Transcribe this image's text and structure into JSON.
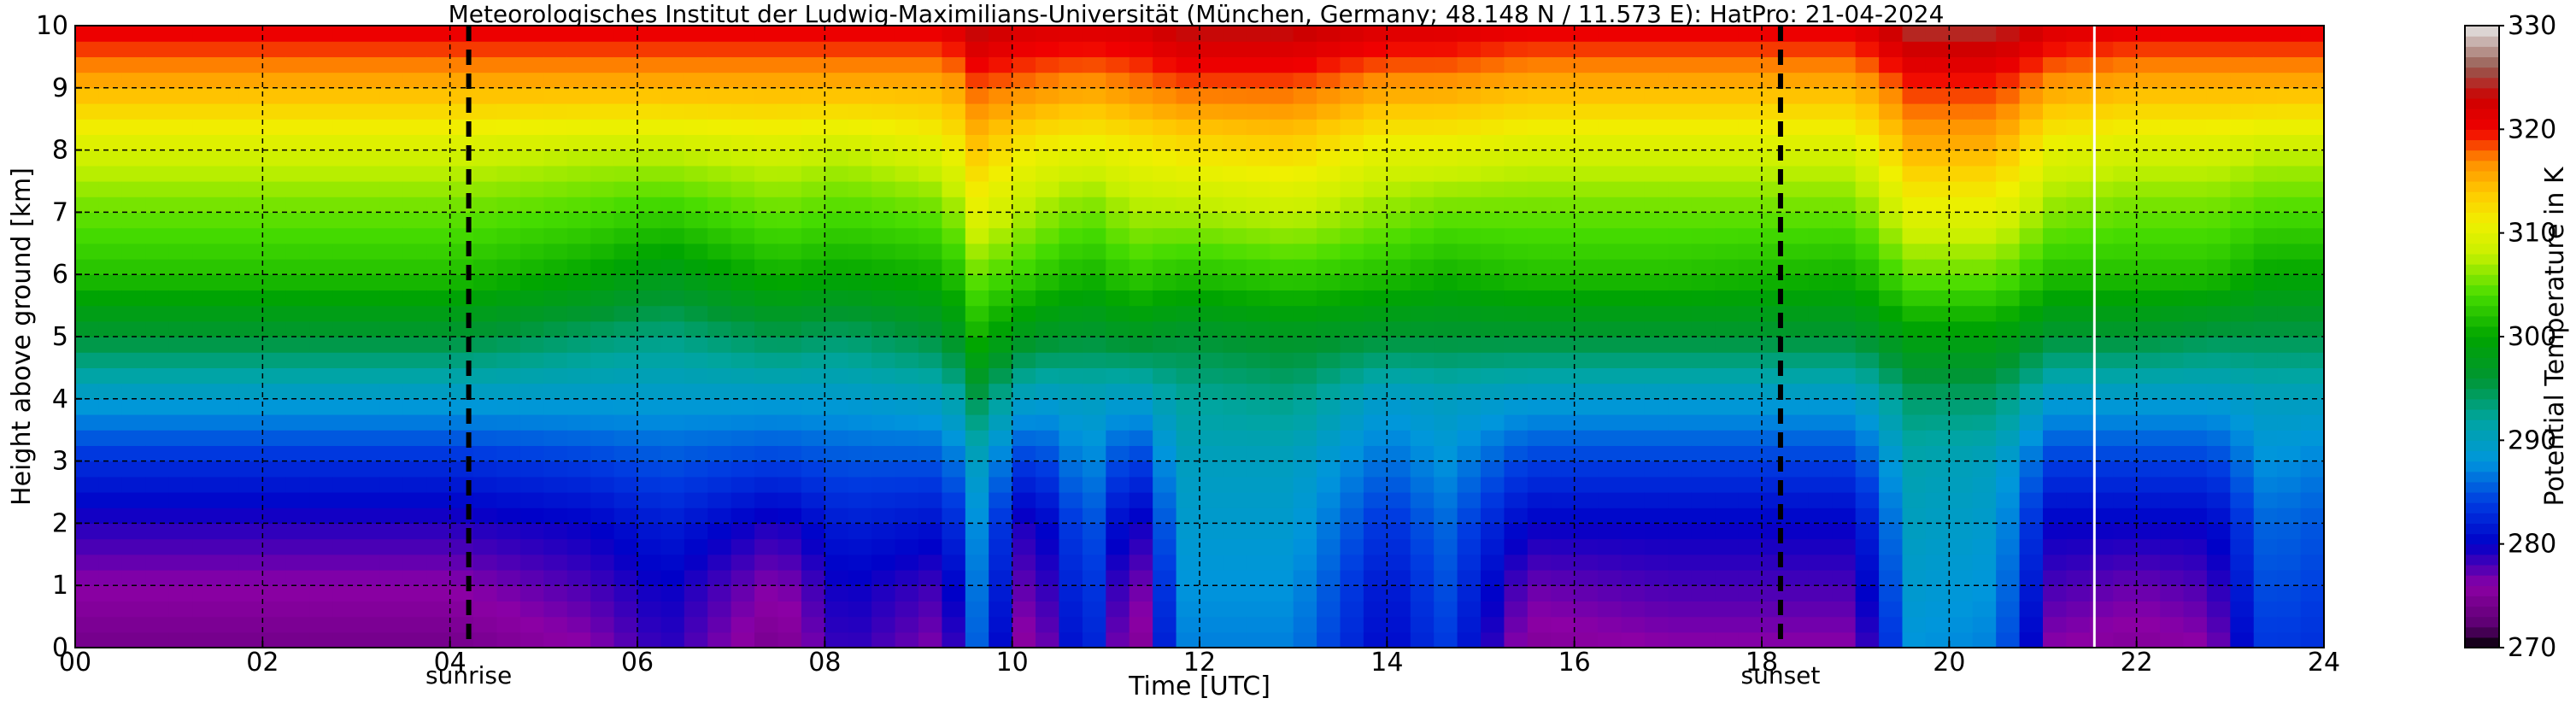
{
  "chart_data": {
    "type": "heatmap",
    "title": "Meteorologisches Institut der Ludwig-Maximilians-Universität (München, Germany; 48.148 N / 11.573 E):    HatPro: 21-04-2024",
    "xlabel": "Time [UTC]",
    "ylabel": "Height above ground [km]",
    "xlim": [
      0,
      24
    ],
    "ylim": [
      0,
      10
    ],
    "xticks": [
      0,
      2,
      4,
      6,
      8,
      10,
      12,
      14,
      16,
      18,
      20,
      22,
      24
    ],
    "xtick_labels": [
      "00",
      "02",
      "04",
      "06",
      "08",
      "10",
      "12",
      "14",
      "16",
      "18",
      "20",
      "22",
      "24"
    ],
    "yticks": [
      0,
      1,
      2,
      3,
      4,
      5,
      6,
      7,
      8,
      9,
      10
    ],
    "ytick_labels": [
      "0",
      "1",
      "2",
      "3",
      "4",
      "5",
      "6",
      "7",
      "8",
      "9",
      "10"
    ],
    "grid": true,
    "colorbar": {
      "label": "Potential Temperature in K",
      "range": [
        270,
        330
      ],
      "ticks": [
        270,
        280,
        290,
        300,
        310,
        320,
        330
      ],
      "tick_labels": [
        "270",
        "280",
        "290",
        "300",
        "310",
        "320",
        "330"
      ]
    },
    "markers": [
      {
        "label": "sunrise",
        "time": 4.2
      },
      {
        "label": "sunset",
        "time": 18.2
      }
    ],
    "annotations": [
      {
        "type": "data-gap",
        "time": 21.55
      }
    ],
    "series": [
      {
        "time": 0.0,
        "values": [
          274,
          276,
          279,
          283,
          289,
          296,
          302,
          305,
          309,
          315,
          321
        ]
      },
      {
        "time": 2.0,
        "values": [
          274,
          276,
          279,
          283,
          289,
          296,
          302,
          305,
          309,
          315,
          321
        ]
      },
      {
        "time": 4.0,
        "values": [
          274,
          276,
          279,
          283,
          289,
          296,
          302,
          305,
          309,
          315,
          321
        ]
      },
      {
        "time": 5.5,
        "values": [
          276,
          278,
          280,
          284,
          289,
          294,
          300,
          304,
          308,
          315,
          321
        ]
      },
      {
        "time": 6.3,
        "values": [
          279,
          280,
          282,
          285,
          289,
          293,
          298,
          303,
          308,
          315,
          321
        ]
      },
      {
        "time": 7.5,
        "values": [
          274,
          276,
          279,
          284,
          289,
          295,
          301,
          305,
          309,
          315,
          321
        ]
      },
      {
        "time": 8.2,
        "values": [
          279,
          280,
          282,
          285,
          289,
          294,
          300,
          304,
          308,
          315,
          321
        ]
      },
      {
        "time": 9.3,
        "values": [
          276,
          278,
          281,
          285,
          290,
          296,
          301,
          305,
          310,
          315,
          321
        ]
      },
      {
        "time": 9.6,
        "values": [
          286,
          287,
          288,
          290,
          295,
          301,
          305,
          310,
          314,
          318,
          324
        ]
      },
      {
        "time": 10.2,
        "values": [
          274,
          276,
          278,
          283,
          289,
          297,
          303,
          307,
          311,
          317,
          322
        ]
      },
      {
        "time": 10.8,
        "values": [
          284,
          285,
          286,
          288,
          290,
          296,
          301,
          305,
          310,
          316,
          322
        ]
      },
      {
        "time": 11.3,
        "values": [
          273,
          275,
          278,
          283,
          289,
          297,
          303,
          307,
          311,
          317,
          322
        ]
      },
      {
        "time": 11.8,
        "values": [
          287,
          288,
          289,
          290,
          292,
          296,
          302,
          307,
          312,
          318,
          324
        ]
      },
      {
        "time": 13.0,
        "values": [
          287,
          288,
          289,
          290,
          293,
          297,
          303,
          308,
          313,
          318,
          324
        ]
      },
      {
        "time": 14.0,
        "values": [
          280,
          281,
          283,
          286,
          289,
          296,
          302,
          306,
          310,
          316,
          322
        ]
      },
      {
        "time": 14.6,
        "values": [
          284,
          285,
          286,
          288,
          290,
          296,
          301,
          305,
          310,
          316,
          322
        ]
      },
      {
        "time": 15.5,
        "values": [
          275,
          277,
          280,
          284,
          289,
          296,
          302,
          305,
          309,
          315,
          321
        ]
      },
      {
        "time": 17.0,
        "values": [
          276,
          278,
          280,
          284,
          289,
          296,
          302,
          305,
          309,
          315,
          321
        ]
      },
      {
        "time": 19.0,
        "values": [
          276,
          278,
          280,
          284,
          289,
          296,
          301,
          305,
          309,
          315,
          321
        ]
      },
      {
        "time": 19.6,
        "values": [
          288,
          289,
          290,
          291,
          294,
          299,
          305,
          310,
          315,
          319,
          325
        ]
      },
      {
        "time": 20.5,
        "values": [
          287,
          288,
          289,
          290,
          294,
          299,
          305,
          310,
          315,
          319,
          325
        ]
      },
      {
        "time": 21.1,
        "values": [
          276,
          278,
          280,
          284,
          289,
          296,
          302,
          306,
          310,
          316,
          322
        ]
      },
      {
        "time": 22.0,
        "values": [
          275,
          277,
          280,
          284,
          289,
          296,
          302,
          305,
          309,
          315,
          321
        ]
      },
      {
        "time": 22.8,
        "values": [
          276,
          278,
          280,
          284,
          289,
          295,
          302,
          305,
          309,
          315,
          321
        ]
      },
      {
        "time": 23.4,
        "values": [
          284,
          285,
          286,
          288,
          290,
          295,
          300,
          304,
          308,
          315,
          321
        ]
      },
      {
        "time": 24.0,
        "values": [
          283,
          284,
          285,
          287,
          290,
          295,
          300,
          304,
          308,
          315,
          321
        ]
      }
    ]
  }
}
